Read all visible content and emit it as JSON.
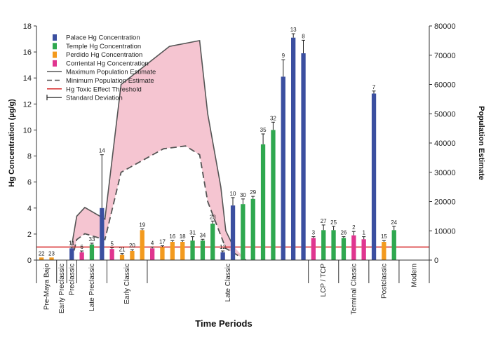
{
  "chart_data": {
    "type": "bar",
    "xlabel": "Time Periods",
    "ylabel": "Hg Concentration (µg/g)",
    "y2label": "Population Estimate",
    "ylim": [
      0,
      18
    ],
    "y2lim": [
      0,
      80000
    ],
    "yticks": [
      0,
      2,
      4,
      6,
      8,
      10,
      12,
      14,
      16,
      18
    ],
    "y2ticks": [
      0,
      10000,
      20000,
      30000,
      40000,
      50000,
      60000,
      70000,
      80000
    ],
    "threshold": 1.0,
    "colors": {
      "Palace": "#3b4fa0",
      "Temple": "#2fa84f",
      "Perdido": "#f39a1e",
      "Corriental": "#e0358f",
      "threshold": "#d62728",
      "population_fill": "#f4c2cf",
      "population_line": "#555555"
    },
    "legend": [
      {
        "key": "Palace",
        "label": "Palace Hg Concentration",
        "kind": "bar"
      },
      {
        "key": "Temple",
        "label": "Temple Hg Concentration",
        "kind": "bar"
      },
      {
        "key": "Perdido",
        "label": "Perdido Hg Concentration",
        "kind": "bar"
      },
      {
        "key": "Corriental",
        "label": "Corriental Hg Concentration",
        "kind": "bar"
      },
      {
        "key": "max",
        "label": "Maximum Population Estimate",
        "kind": "solid"
      },
      {
        "key": "min",
        "label": "Minimum Population Estimate",
        "kind": "dashed"
      },
      {
        "key": "threshold",
        "label": "Hg Toxic Effect Threshold",
        "kind": "threshold"
      },
      {
        "key": "sd",
        "label": "Standard Deviation",
        "kind": "errorbar"
      }
    ],
    "periods": [
      {
        "label": "Pre-Maya Bajo",
        "start": 0,
        "end": 2
      },
      {
        "label": "Early Preclassic",
        "start": 2,
        "end": 3
      },
      {
        "label": "Preclassic",
        "start": 3,
        "end": 4
      },
      {
        "label": "Late Preclassic",
        "start": 4,
        "end": 7
      },
      {
        "label": "Early Classic",
        "start": 7,
        "end": 11
      },
      {
        "label": "Late Classic",
        "start": 11,
        "end": 27
      },
      {
        "label": "LCP / TCP",
        "start": 27,
        "end": 30
      },
      {
        "label": "Terminal Classic",
        "start": 30,
        "end": 33
      },
      {
        "label": "Postclassic",
        "start": 33,
        "end": 36
      },
      {
        "label": "Modern",
        "start": 36,
        "end": 39
      }
    ],
    "bars": [
      {
        "id": "22",
        "group": "Perdido",
        "value": 0.2,
        "sd": 0
      },
      {
        "id": "23",
        "group": "Perdido",
        "value": 0.2,
        "sd": 0
      },
      {
        "id": "11",
        "group": "Palace",
        "value": 0.9,
        "sd": 0.1
      },
      {
        "id": "6",
        "group": "Corriental",
        "value": 0.6,
        "sd": 0.1
      },
      {
        "id": "33",
        "group": "Temple",
        "value": 1.2,
        "sd": 0.1
      },
      {
        "id": "14",
        "group": "Palace",
        "value": 4.0,
        "sd": 4.1
      },
      {
        "id": "5",
        "group": "Corriental",
        "value": 0.85,
        "sd": 0.1
      },
      {
        "id": "21",
        "group": "Perdido",
        "value": 0.4,
        "sd": 0.1
      },
      {
        "id": "20",
        "group": "Perdido",
        "value": 0.7,
        "sd": 0.1
      },
      {
        "id": "19",
        "group": "Perdido",
        "value": 2.3,
        "sd": 0.1
      },
      {
        "id": "4",
        "group": "Corriental",
        "value": 0.9,
        "sd": 0.1
      },
      {
        "id": "17",
        "group": "Perdido",
        "value": 1.0,
        "sd": 0.1
      },
      {
        "id": "16",
        "group": "Perdido",
        "value": 1.4,
        "sd": 0.1
      },
      {
        "id": "18",
        "group": "Perdido",
        "value": 1.4,
        "sd": 0.1
      },
      {
        "id": "31",
        "group": "Temple",
        "value": 1.5,
        "sd": 0.3
      },
      {
        "id": "34",
        "group": "Temple",
        "value": 1.5,
        "sd": 0.1
      },
      {
        "id": "28",
        "group": "Temple",
        "value": 2.8,
        "sd": 0.2
      },
      {
        "id": "12",
        "group": "Palace",
        "value": 0.6,
        "sd": 0.1
      },
      {
        "id": "10",
        "group": "Palace",
        "value": 4.2,
        "sd": 0.6
      },
      {
        "id": "30",
        "group": "Temple",
        "value": 4.3,
        "sd": 0.4
      },
      {
        "id": "29",
        "group": "Temple",
        "value": 4.7,
        "sd": 0.2
      },
      {
        "id": "35",
        "group": "Temple",
        "value": 8.9,
        "sd": 0.8
      },
      {
        "id": "32",
        "group": "Temple",
        "value": 10.0,
        "sd": 0.6
      },
      {
        "id": "9",
        "group": "Palace",
        "value": 14.1,
        "sd": 1.3
      },
      {
        "id": "13",
        "group": "Palace",
        "value": 17.1,
        "sd": 0.3
      },
      {
        "id": "8",
        "group": "Palace",
        "value": 15.9,
        "sd": 1.0
      },
      {
        "id": "3",
        "group": "Corriental",
        "value": 1.7,
        "sd": 0.1
      },
      {
        "id": "27",
        "group": "Temple",
        "value": 2.3,
        "sd": 0.4
      },
      {
        "id": "25",
        "group": "Temple",
        "value": 2.3,
        "sd": 0.3
      },
      {
        "id": "26",
        "group": "Temple",
        "value": 1.7,
        "sd": 0.1
      },
      {
        "id": "2",
        "group": "Corriental",
        "value": 1.9,
        "sd": 0.3
      },
      {
        "id": "1",
        "group": "Corriental",
        "value": 1.6,
        "sd": 0.2
      },
      {
        "id": "7",
        "group": "Palace",
        "value": 12.8,
        "sd": 0.2
      },
      {
        "id": "15",
        "group": "Perdido",
        "value": 1.4,
        "sd": 0.1
      },
      {
        "id": "24",
        "group": "Temple",
        "value": 2.3,
        "sd": 0.3
      }
    ],
    "population": {
      "max": [
        [
          3.5,
          5000
        ],
        [
          4.0,
          15000
        ],
        [
          4.8,
          18000
        ],
        [
          6.8,
          14000
        ],
        [
          8.4,
          60000
        ],
        [
          13.2,
          73000
        ],
        [
          16.2,
          75000
        ],
        [
          17.0,
          50000
        ],
        [
          18.3,
          25000
        ],
        [
          18.8,
          10000
        ],
        [
          19.5,
          5000
        ]
      ],
      "min": [
        [
          3.5,
          0
        ],
        [
          4.0,
          7000
        ],
        [
          4.8,
          9000
        ],
        [
          6.8,
          7000
        ],
        [
          8.4,
          30000
        ],
        [
          12.6,
          38000
        ],
        [
          14.8,
          39000
        ],
        [
          16.2,
          36000
        ],
        [
          17.0,
          20000
        ],
        [
          18.8,
          4000
        ],
        [
          20.8,
          0
        ]
      ]
    }
  }
}
